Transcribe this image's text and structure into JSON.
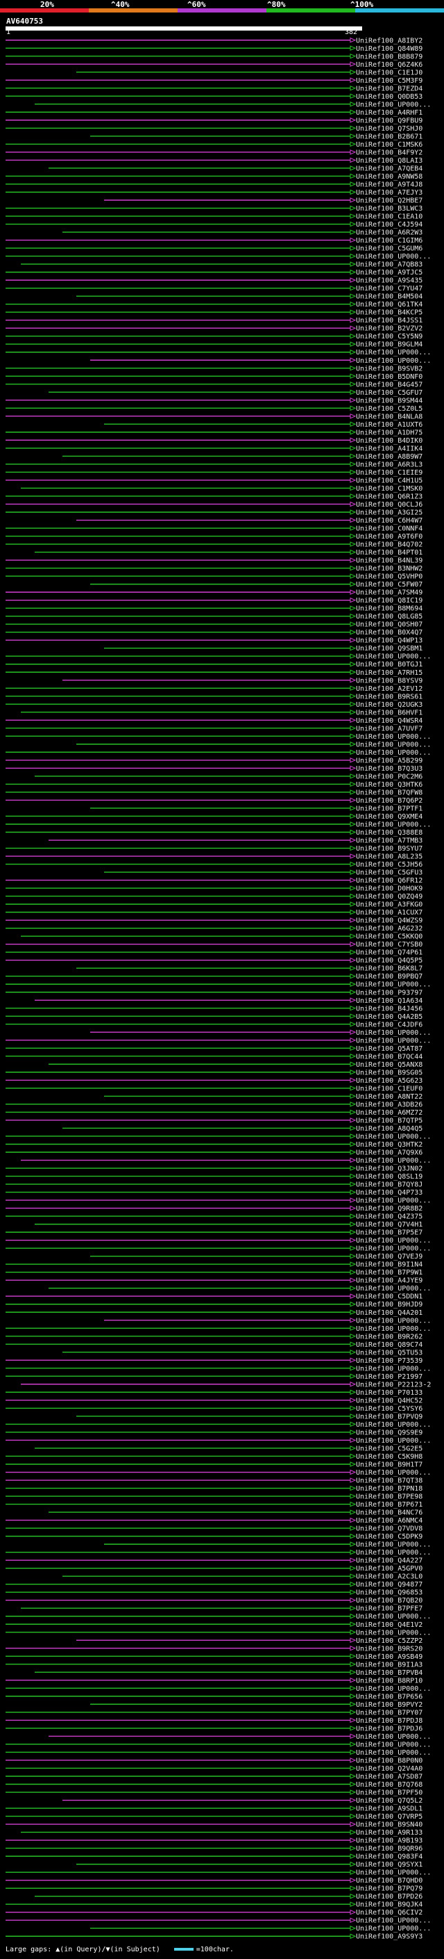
{
  "query": {
    "id": "AV640753",
    "start": "1",
    "end": "382"
  },
  "identity_legend": [
    {
      "label": "20%",
      "color": "#e0202a"
    },
    {
      "label": "^40%",
      "color": "#e07a1c"
    },
    {
      "label": "^60%",
      "color": "#b03ad0"
    },
    {
      "label": "^80%",
      "color": "#22b822"
    },
    {
      "label": "^100%",
      "color": "#2ab8dc"
    }
  ],
  "hits": [
    "UniRef100_A8IBY2",
    "UniRef100_Q84W89",
    "UniRef100_B8B879",
    "UniRef100_Q6Z4K6",
    "UniRef100_C1E1J0",
    "UniRef100_C5M3F9",
    "UniRef100_B7EZD4",
    "UniRef100_Q0DB53",
    "UniRef100_UP000...",
    "UniRef100_A4RHF1",
    "UniRef100_Q9FBU9",
    "UniRef100_Q7SHJ0",
    "UniRef100_B2B671",
    "UniRef100_C1MSK6",
    "UniRef100_B4F9Y2",
    "UniRef100_Q8LAI3",
    "UniRef100_A7QEB4",
    "UniRef100_A9NW58",
    "UniRef100_A9T4J8",
    "UniRef100_A7EJY3",
    "UniRef100_Q2HBE7",
    "UniRef100_B3LWC3",
    "UniRef100_C1EA10",
    "UniRef100_C4J594",
    "UniRef100_A6R2W3",
    "UniRef100_C1GIM6",
    "UniRef100_C5GUM6",
    "UniRef100_UP000...",
    "UniRef100_A7QB83",
    "UniRef100_A9TJC5",
    "UniRef100_A9S435",
    "UniRef100_C7YU47",
    "UniRef100_B4M504",
    "UniRef100_Q61TK4",
    "UniRef100_B4KCP5",
    "UniRef100_B4JSS1",
    "UniRef100_B2VZV2",
    "UniRef100_C5Y5N9",
    "UniRef100_B9GLM4",
    "UniRef100_UP000...",
    "UniRef100_UP000...",
    "UniRef100_B9SVB2",
    "UniRef100_B5DNF0",
    "UniRef100_B4G457",
    "UniRef100_C5GFU7",
    "UniRef100_B9SM44",
    "UniRef100_C5Z0L5",
    "UniRef100_B4NLA8",
    "UniRef100_A1UXT6",
    "UniRef100_A1DH75",
    "UniRef100_B4DIK0",
    "UniRef100_A4IIK4",
    "UniRef100_A8B9W7",
    "UniRef100_A6R3L3",
    "UniRef100_C1EIE9",
    "UniRef100_C4H1U5",
    "UniRef100_C1MSK0",
    "UniRef100_Q6R1Z3",
    "UniRef100_Q0CLJ6",
    "UniRef100_A3GI25",
    "UniRef100_C6H4W7",
    "UniRef100_C0NNF4",
    "UniRef100_A9T6F0",
    "UniRef100_B4Q702",
    "UniRef100_B4PT01",
    "UniRef100_B4NL39",
    "UniRef100_B3NHW2",
    "UniRef100_Q5VHP0",
    "UniRef100_C5FW07",
    "UniRef100_A7SM49",
    "UniRef100_Q8IC19",
    "UniRef100_B8M694",
    "UniRef100_Q8LG85",
    "UniRef100_Q0SH07",
    "UniRef100_B0X4Q7",
    "UniRef100_Q4WP13",
    "UniRef100_Q9SBM1",
    "UniRef100_UP000...",
    "UniRef100_B0TGJ1",
    "UniRef100_A7RH15",
    "UniRef100_B8YSV9",
    "UniRef100_A2EV12",
    "UniRef100_B9RS61",
    "UniRef100_Q2UGK3",
    "UniRef100_B6HVF1",
    "UniRef100_Q4WSR4",
    "UniRef100_A7UVF7",
    "UniRef100_UP000...",
    "UniRef100_UP000...",
    "UniRef100_UP000...",
    "UniRef100_A5B299",
    "UniRef100_B7Q3U3",
    "UniRef100_P0C2M6",
    "UniRef100_Q3HTK6",
    "UniRef100_B7QFW8",
    "UniRef100_B7Q6P2",
    "UniRef100_B7PTF1",
    "UniRef100_Q9XME4",
    "UniRef100_UP000...",
    "UniRef100_Q388E8",
    "UniRef100_A7TMB3",
    "UniRef100_B9SYU7",
    "UniRef100_A8L235",
    "UniRef100_C5JH56",
    "UniRef100_C5GFU3",
    "UniRef100_Q6FR12",
    "UniRef100_D0HOK9",
    "UniRef100_Q0ZQ49",
    "UniRef100_A3FKG0",
    "UniRef100_A1CUX7",
    "UniRef100_Q4WZS9",
    "UniRef100_A6G232",
    "UniRef100_C5KKQ0",
    "UniRef100_C7YSB0",
    "UniRef100_Q74P61",
    "UniRef100_Q4Q5P5",
    "UniRef100_B6K8L7",
    "UniRef100_B9PBQ7",
    "UniRef100_UP000...",
    "UniRef100_P93797",
    "UniRef100_Q1A634",
    "UniRef100_B4J456",
    "UniRef100_Q4A2B5",
    "UniRef100_C4JDF6",
    "UniRef100_UP000...",
    "UniRef100_UP000...",
    "UniRef100_Q5AT87",
    "UniRef100_B7QC44",
    "UniRef100_Q5ANX8",
    "UniRef100_B9SG05",
    "UniRef100_A5G623",
    "UniRef100_C1EUF0",
    "UniRef100_A8NT22",
    "UniRef100_A3DB26",
    "UniRef100_A6MZ72",
    "UniRef100_B7QTP5",
    "UniRef100_A8Q4Q5",
    "UniRef100_UP000...",
    "UniRef100_Q3HTK2",
    "UniRef100_A7Q9X6",
    "UniRef100_UP000...",
    "UniRef100_Q3JN02",
    "UniRef100_Q8SL19",
    "UniRef100_B7QY8J",
    "UniRef100_Q4P733",
    "UniRef100_UP000...",
    "UniRef100_Q9R8B2",
    "UniRef100_Q4Z375",
    "UniRef100_Q7V4H1",
    "UniRef100_B7P5E7",
    "UniRef100_UP000...",
    "UniRef100_UP000...",
    "UniRef100_Q7VEJ9",
    "UniRef100_B9I1N4",
    "UniRef100_B7P9W1",
    "UniRef100_A4JYE9",
    "UniRef100_UP000...",
    "UniRef100_C5DDN1",
    "UniRef100_B9HJD9",
    "UniRef100_Q4A201",
    "UniRef100_UP000...",
    "UniRef100_UP000...",
    "UniRef100_B9R262",
    "UniRef100_Q89C74",
    "UniRef100_Q5TU53",
    "UniRef100_P73539",
    "UniRef100_UP000...",
    "UniRef100_P21997",
    "UniRef100_P22123-2",
    "UniRef100_P70133",
    "UniRef100_Q4HC52",
    "UniRef100_C5YSY6",
    "UniRef100_B7PVQ9",
    "UniRef100_UP000...",
    "UniRef100_Q9S9E9",
    "UniRef100_UP000...",
    "UniRef100_C5G2E5",
    "UniRef100_C5K9H8",
    "UniRef100_B9H1T7",
    "UniRef100_UP000...",
    "UniRef100_B7QT38",
    "UniRef100_B7PN18",
    "UniRef100_B7PE98",
    "UniRef100_B7P671",
    "UniRef100_B4NC76",
    "UniRef100_A6NMC4",
    "UniRef100_Q7VDV8",
    "UniRef100_C5DPK9",
    "UniRef100_UP000...",
    "UniRef100_UP000...",
    "UniRef100_Q4A227",
    "UniRef100_A5GPV0",
    "UniRef100_A2C3L0",
    "UniRef100_Q94877",
    "UniRef100_Q96853",
    "UniRef100_B7QB20",
    "UniRef100_B7PFE7",
    "UniRef100_UP000...",
    "UniRef100_Q4E1V2",
    "UniRef100_UP000...",
    "UniRef100_C5ZZP2",
    "UniRef100_B9RS20",
    "UniRef100_A9SB49",
    "UniRef100_B9I1A3",
    "UniRef100_B7PVB4",
    "UniRef100_B8RP10",
    "UniRef100_UP000...",
    "UniRef100_B7P656",
    "UniRef100_B9PVY2",
    "UniRef100_B7PY07",
    "UniRef100_B7PDJ8",
    "UniRef100_B7PDJ6",
    "UniRef100_UP000...",
    "UniRef100_UP000...",
    "UniRef100_UP000...",
    "UniRef100_B8P0N0",
    "UniRef100_Q2V4A0",
    "UniRef100_A7SD87",
    "UniRef100_B7Q768",
    "UniRef100_B7PF50",
    "UniRef100_Q7Q5L2",
    "UniRef100_A9SDL1",
    "UniRef100_Q7VRP5",
    "UniRef100_B9SN40",
    "UniRef100_A9R133",
    "UniRef100_A9B193",
    "UniRef100_B9QR96",
    "UniRef100_Q983F4",
    "UniRef100_Q9SYX1",
    "UniRef100_UP000...",
    "UniRef100_B7QHD0",
    "UniRef100_B7PQ79",
    "UniRef100_B7PD26",
    "UniRef100_B9QJK4",
    "UniRef100_Q6CIV2",
    "UniRef100_UP000...",
    "UniRef100_UP000...",
    "UniRef100_A9S9Y3"
  ],
  "footer": {
    "gaps_text": "Large gaps: ▲(in Query)/▼(in Subject)",
    "scale_text": "=100char."
  }
}
